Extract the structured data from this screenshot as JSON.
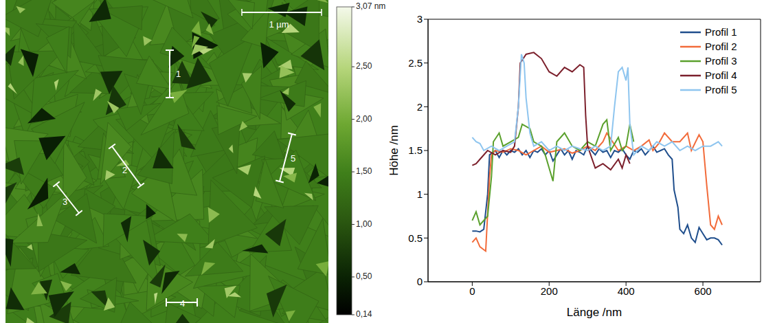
{
  "afm_image": {
    "scale_bar": "1 µm",
    "profile_labels": [
      "1",
      "2",
      "3",
      "4",
      "5"
    ],
    "colorbar": {
      "range": [
        0.14,
        3.07
      ],
      "ticks": [
        {
          "value": 3.07,
          "label": "3,07 nm"
        },
        {
          "value": 2.5,
          "label": "2,50"
        },
        {
          "value": 2.0,
          "label": "2,00"
        },
        {
          "value": 1.5,
          "label": "1,50"
        },
        {
          "value": 1.0,
          "label": "1,00"
        },
        {
          "value": 0.5,
          "label": "0,50"
        },
        {
          "value": 0.14,
          "label": "0,14"
        }
      ]
    }
  },
  "chart_data": {
    "type": "line",
    "xlabel": "Länge /nm",
    "ylabel": "Höhe /nm",
    "xlim": [
      -115,
      750
    ],
    "xticks": [
      0,
      200,
      400,
      600
    ],
    "ylim": [
      0,
      3
    ],
    "yticks": [
      0,
      0.5,
      1,
      1.5,
      2,
      2.5,
      3
    ],
    "grid": false,
    "legend": "upper right",
    "series": [
      {
        "name": "Profil 1",
        "color": "#1f4e8c",
        "x": [
          0,
          10,
          20,
          30,
          40,
          45,
          60,
          70,
          80,
          90,
          100,
          110,
          120,
          130,
          140,
          150,
          160,
          170,
          180,
          190,
          200,
          210,
          220,
          230,
          240,
          250,
          260,
          270,
          280,
          290,
          300,
          310,
          320,
          330,
          340,
          350,
          360,
          370,
          380,
          390,
          400,
          410,
          420,
          430,
          440,
          450,
          460,
          470,
          480,
          490,
          500,
          510,
          520,
          525,
          535,
          540,
          550,
          560,
          570,
          580,
          590,
          600,
          610,
          620,
          630,
          640,
          650
        ],
        "values": [
          0.58,
          0.58,
          0.57,
          0.6,
          1.0,
          1.45,
          1.5,
          1.42,
          1.5,
          1.45,
          1.5,
          1.48,
          1.52,
          1.45,
          1.5,
          1.42,
          1.5,
          1.48,
          1.52,
          1.45,
          1.5,
          1.38,
          1.45,
          1.52,
          1.45,
          1.5,
          1.4,
          1.5,
          1.48,
          1.45,
          1.55,
          1.5,
          1.45,
          1.52,
          1.48,
          1.5,
          1.42,
          1.5,
          1.48,
          1.52,
          1.45,
          1.4,
          1.5,
          1.48,
          1.52,
          1.45,
          1.5,
          1.55,
          1.48,
          1.5,
          1.52,
          1.45,
          1.4,
          1.05,
          0.85,
          0.6,
          0.55,
          0.65,
          0.5,
          0.45,
          0.62,
          0.55,
          0.48,
          0.5,
          0.5,
          0.48,
          0.42
        ]
      },
      {
        "name": "Profil 2",
        "color": "#f26b3a",
        "x": [
          0,
          10,
          20,
          35,
          45,
          50,
          60,
          80,
          100,
          120,
          140,
          160,
          180,
          200,
          220,
          240,
          260,
          280,
          300,
          320,
          340,
          350,
          365,
          380,
          400,
          420,
          440,
          460,
          470,
          485,
          500,
          520,
          540,
          560,
          570,
          590,
          600,
          610,
          620,
          630,
          640,
          650
        ],
        "values": [
          0.45,
          0.5,
          0.4,
          0.35,
          1.2,
          1.45,
          1.5,
          1.48,
          1.52,
          1.5,
          1.45,
          1.5,
          1.55,
          1.48,
          1.5,
          1.52,
          1.47,
          1.5,
          1.55,
          1.5,
          1.6,
          1.7,
          1.6,
          1.5,
          1.55,
          1.5,
          1.55,
          1.62,
          1.5,
          1.58,
          1.7,
          1.6,
          1.6,
          1.7,
          1.5,
          1.68,
          1.6,
          1.1,
          0.65,
          0.6,
          0.75,
          0.65
        ]
      },
      {
        "name": "Profil 3",
        "color": "#5aa02c",
        "x": [
          0,
          10,
          20,
          40,
          50,
          55,
          70,
          80,
          100,
          120,
          130,
          150,
          160,
          180,
          190,
          200,
          210,
          220,
          240,
          260,
          280,
          300,
          320,
          340,
          350,
          360,
          380,
          390,
          400,
          410,
          420
        ],
        "values": [
          0.7,
          0.8,
          0.65,
          0.75,
          1.2,
          1.6,
          1.7,
          1.55,
          1.6,
          1.65,
          1.8,
          1.75,
          1.6,
          1.55,
          1.45,
          1.3,
          1.15,
          1.6,
          1.7,
          1.55,
          1.5,
          1.6,
          1.55,
          1.8,
          1.85,
          1.5,
          1.65,
          1.5,
          1.55,
          1.8,
          1.6
        ]
      },
      {
        "name": "Profil 4",
        "color": "#7b1f2b",
        "x": [
          0,
          10,
          20,
          40,
          60,
          80,
          100,
          110,
          120,
          125,
          140,
          160,
          180,
          200,
          220,
          240,
          260,
          280,
          290,
          295,
          300,
          320,
          340,
          360,
          380,
          390,
          400,
          410
        ],
        "values": [
          1.33,
          1.35,
          1.4,
          1.5,
          1.45,
          1.5,
          1.48,
          1.55,
          2.0,
          2.5,
          2.6,
          2.62,
          2.55,
          2.4,
          2.35,
          2.45,
          2.4,
          2.48,
          2.45,
          1.9,
          1.55,
          1.3,
          1.35,
          1.28,
          1.4,
          1.3,
          1.45,
          1.35
        ]
      },
      {
        "name": "Profil 5",
        "color": "#8ec5ef",
        "x": [
          0,
          10,
          20,
          30,
          50,
          70,
          90,
          110,
          120,
          128,
          135,
          140,
          150,
          160,
          180,
          200,
          220,
          240,
          260,
          280,
          300,
          320,
          340,
          360,
          370,
          380,
          390,
          400,
          405,
          410,
          420,
          440,
          460,
          480,
          500,
          520,
          540,
          560,
          580,
          600,
          620,
          640,
          650
        ],
        "values": [
          1.65,
          1.6,
          1.58,
          1.5,
          1.55,
          1.5,
          1.55,
          1.6,
          2.0,
          2.6,
          2.5,
          2.1,
          1.7,
          1.55,
          1.6,
          1.5,
          1.55,
          1.5,
          1.55,
          1.52,
          1.5,
          1.55,
          1.5,
          1.55,
          2.0,
          2.4,
          2.45,
          2.3,
          2.45,
          1.8,
          1.45,
          1.55,
          1.5,
          1.6,
          1.55,
          1.6,
          1.5,
          1.55,
          1.5,
          1.55,
          1.55,
          1.6,
          1.55
        ]
      }
    ]
  }
}
